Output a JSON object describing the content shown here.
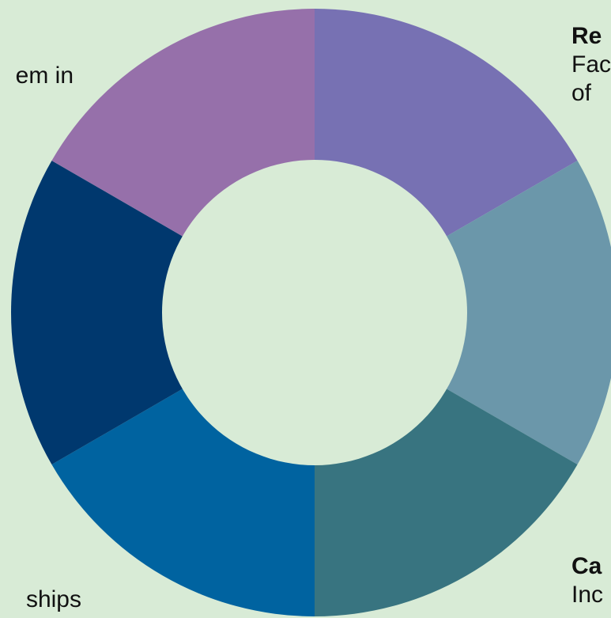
{
  "background_color": "#d8ebd6",
  "hole_color": "#d8ebd6",
  "segments": [
    {
      "color": "#7771b3"
    },
    {
      "color": "#6b97aa"
    },
    {
      "color": "#387480"
    },
    {
      "color": "#0063a0"
    },
    {
      "color": "#00386e"
    },
    {
      "color": "#9670aa"
    }
  ],
  "labels": {
    "top_left_fragment": "em in",
    "top_right_title": "Re",
    "top_right_line1": "Fac",
    "top_right_line2": "of",
    "bottom_left_fragment": "ships",
    "bottom_right_title": "Ca",
    "bottom_right_line1": "Inc"
  }
}
